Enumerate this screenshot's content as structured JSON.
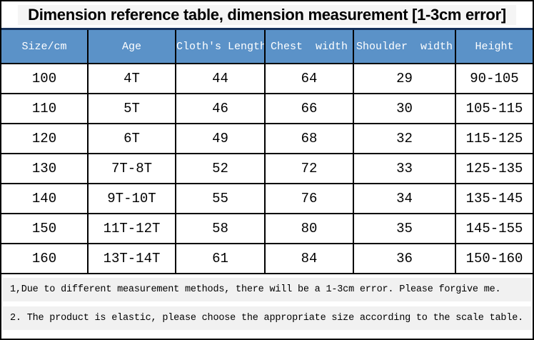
{
  "title": "Dimension reference table, dimension measurement [1-3cm error]",
  "chart_data": {
    "type": "table",
    "title": "Dimension reference table, dimension measurement [1-3cm error]",
    "columns": [
      "Size/cm",
      "Age",
      "Cloth's Length",
      "Chest  width",
      "Shoulder  width",
      "Height"
    ],
    "rows": [
      [
        "100",
        "4T",
        "44",
        "64",
        "29",
        "90-105"
      ],
      [
        "110",
        "5T",
        "46",
        "66",
        "30",
        "105-115"
      ],
      [
        "120",
        "6T",
        "49",
        "68",
        "32",
        "115-125"
      ],
      [
        "130",
        "7T-8T",
        "52",
        "72",
        "33",
        "125-135"
      ],
      [
        "140",
        "9T-10T",
        "55",
        "76",
        "34",
        "135-145"
      ],
      [
        "150",
        "11T-12T",
        "58",
        "80",
        "35",
        "145-155"
      ],
      [
        "160",
        "13T-14T",
        "61",
        "84",
        "36",
        "150-160"
      ]
    ],
    "units": "cm",
    "notes": [
      "1,Due to different measurement methods, there will be a 1-3cm error. Please forgive me.",
      "2. The product is elastic, please choose the appropriate size according to the scale table."
    ]
  },
  "colors": {
    "header_bg": "#5b92c8",
    "header_text": "#ffffff",
    "grid_border": "#000000",
    "title_separator": "#16325c",
    "note_highlight": "#f1f1f1",
    "title_highlight": "#f5f5f5"
  }
}
